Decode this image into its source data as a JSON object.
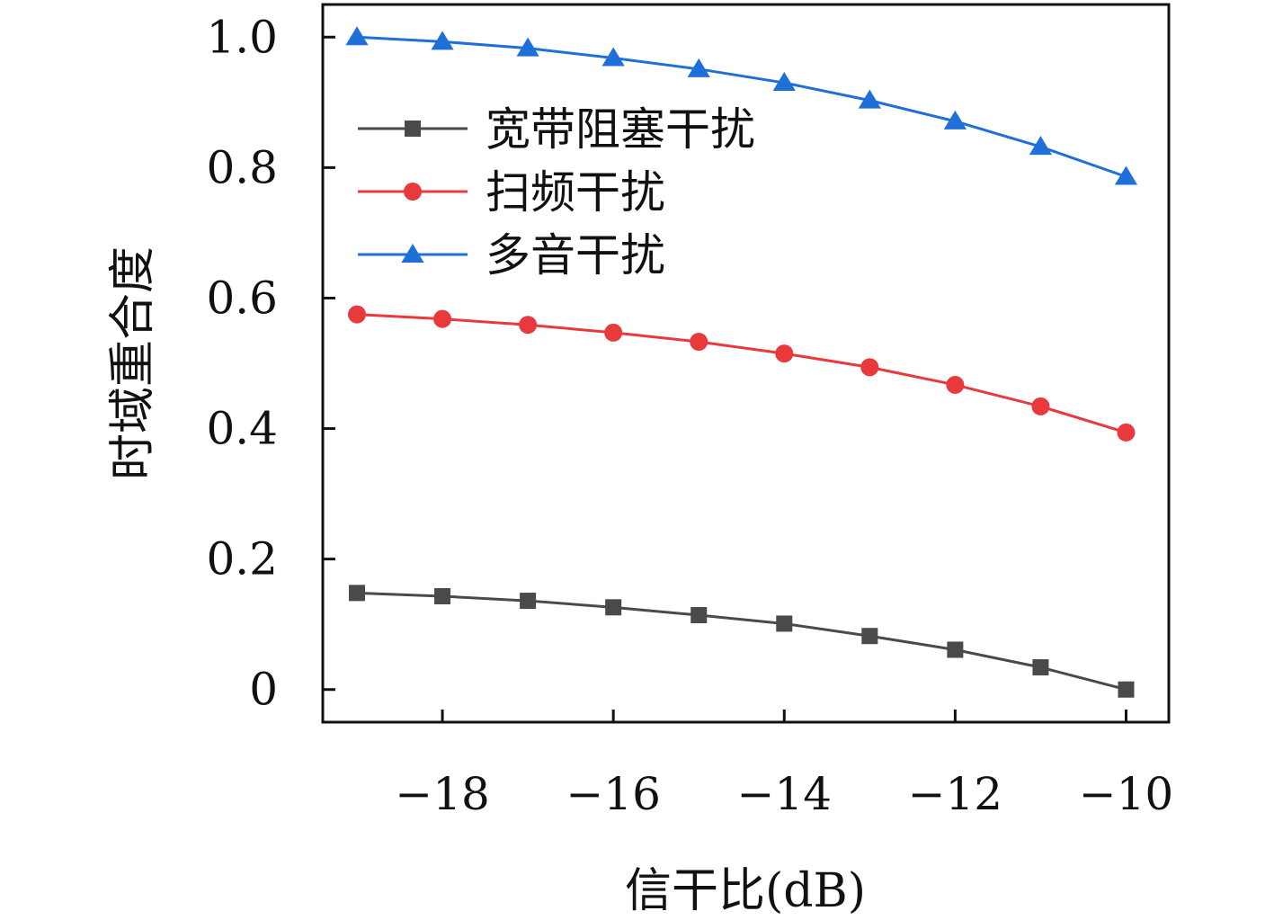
{
  "chart_data": {
    "type": "line",
    "xlabel": "信干比(dB)",
    "ylabel": "时域重合度",
    "xlim": [
      -19.4,
      -9.5
    ],
    "ylim": [
      -0.05,
      1.05
    ],
    "xticks": [
      -18,
      -16,
      -14,
      -12,
      -10
    ],
    "xtick_labels": [
      "−18",
      "−16",
      "−14",
      "−12",
      "−10"
    ],
    "yticks": [
      0,
      0.2,
      0.4,
      0.6,
      0.8,
      1.0
    ],
    "ytick_labels": [
      "0",
      "0.2",
      "0.4",
      "0.6",
      "0.8",
      "1.0"
    ],
    "grid": false,
    "legend_position": "upper-left",
    "x": [
      -19,
      -18,
      -17,
      -16,
      -15,
      -14,
      -13,
      -12,
      -11,
      -10
    ],
    "series": [
      {
        "name": "宽带阻塞干扰",
        "marker": "square",
        "color": "#4a4a4a",
        "values": [
          0.148,
          0.143,
          0.136,
          0.126,
          0.114,
          0.101,
          0.082,
          0.061,
          0.034,
          0.0
        ]
      },
      {
        "name": "扫频干扰",
        "marker": "circle",
        "color": "#e8393d",
        "values": [
          0.575,
          0.568,
          0.559,
          0.547,
          0.533,
          0.515,
          0.494,
          0.467,
          0.434,
          0.394
        ]
      },
      {
        "name": "多音干扰",
        "marker": "triangle",
        "color": "#1f6fd8",
        "values": [
          1.0,
          0.993,
          0.983,
          0.968,
          0.951,
          0.93,
          0.903,
          0.871,
          0.832,
          0.786
        ]
      }
    ]
  }
}
